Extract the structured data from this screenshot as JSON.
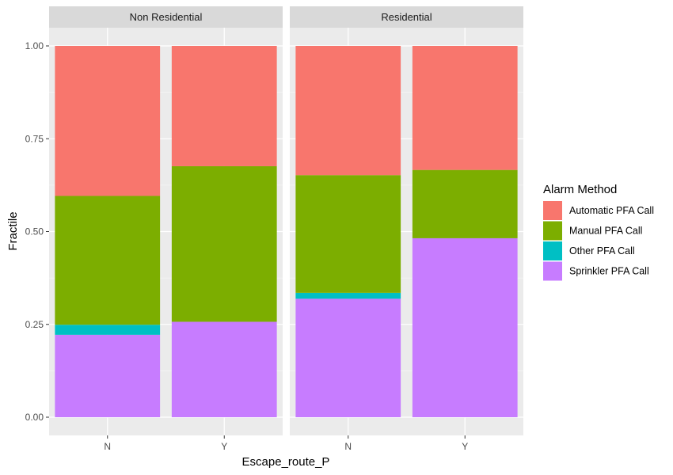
{
  "chart_data": {
    "type": "bar",
    "stacked": true,
    "position": "fill",
    "xlabel": "Escape_route_P",
    "ylabel": "Fractile",
    "ylim": [
      0,
      1
    ],
    "yticks": [
      "0.00",
      "0.25",
      "0.50",
      "0.75",
      "1.00"
    ],
    "categories": [
      "N",
      "Y"
    ],
    "legend": {
      "title": "Alarm Method",
      "position": "right",
      "entries": [
        {
          "name": "Automatic PFA Call",
          "color": "#F8766D"
        },
        {
          "name": "Manual PFA Call",
          "color": "#7CAE00"
        },
        {
          "name": "Other PFA Call",
          "color": "#00BFC4"
        },
        {
          "name": "Sprinkler PFA Call",
          "color": "#C77CFF"
        }
      ]
    },
    "panels": [
      {
        "label": "Non Residential",
        "bars": [
          {
            "category": "N",
            "segments": {
              "Sprinkler PFA Call": 0.222,
              "Other PFA Call": 0.027,
              "Manual PFA Call": 0.347,
              "Automatic PFA Call": 0.404
            }
          },
          {
            "category": "Y",
            "segments": {
              "Sprinkler PFA Call": 0.257,
              "Other PFA Call": 0.0,
              "Manual PFA Call": 0.419,
              "Automatic PFA Call": 0.324
            }
          }
        ]
      },
      {
        "label": "Residential",
        "bars": [
          {
            "category": "N",
            "segments": {
              "Sprinkler PFA Call": 0.319,
              "Other PFA Call": 0.016,
              "Manual PFA Call": 0.317,
              "Automatic PFA Call": 0.348
            }
          },
          {
            "category": "Y",
            "segments": {
              "Sprinkler PFA Call": 0.482,
              "Other PFA Call": 0.0,
              "Manual PFA Call": 0.184,
              "Automatic PFA Call": 0.334
            }
          }
        ]
      }
    ]
  }
}
